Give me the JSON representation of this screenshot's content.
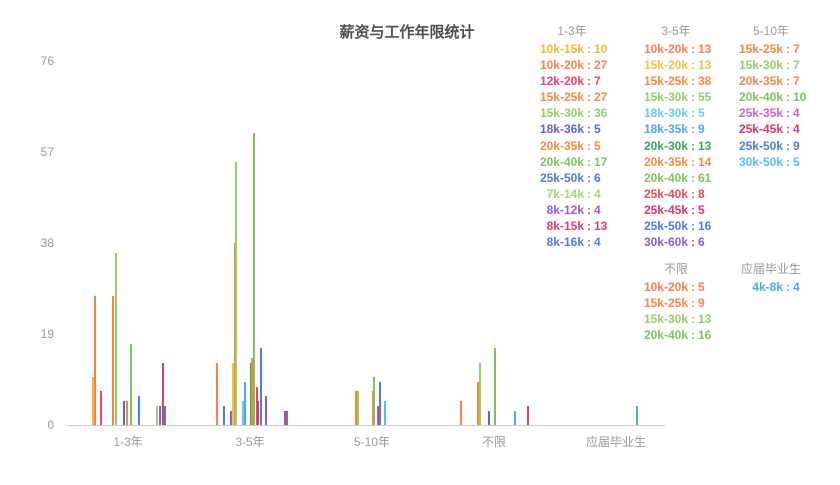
{
  "title": "薪资与工作年限统计",
  "chart_data": {
    "type": "bar",
    "title": "薪资与工作年限统计",
    "xlabel": "",
    "ylabel": "",
    "y_ticks": [
      0,
      19,
      38,
      57,
      76
    ],
    "ylim": [
      0,
      76
    ],
    "grid": false,
    "legend_position": "right",
    "categories": [
      "1-3年",
      "3-5年",
      "5-10年",
      "不限",
      "应届毕业生"
    ],
    "range_colors": {
      "10k-15k": "#F8B62D",
      "10k-20k": "#F97D51",
      "12k-20k": "#EE3F6F",
      "15k-20k": "#F4C23C",
      "15k-25k": "#F6883D",
      "15k-30k": "#93CE67",
      "18k-30k": "#66CEE4",
      "18k-35k": "#4BA5EF",
      "18k-36k": "#5A64D2",
      "20k-30k": "#34A863",
      "20k-35k": "#F6873C",
      "20k-40k": "#7CC35B",
      "25k-35k": "#C95FD8",
      "25k-40k": "#EF4752",
      "25k-45k": "#DC3568",
      "25k-50k": "#4D7BE0",
      "30k-50k": "#53BEF0",
      "30k-60k": "#8B5BD6",
      "4k-8k": "#45AAF0",
      "7k-14k": "#A5D46A",
      "8k-12k": "#8E5BD9",
      "8k-15k": "#DD3C6F",
      "8k-16k": "#4D7BE0"
    },
    "groups": [
      {
        "name": "1-3年",
        "legend_col": 0,
        "legend_row": 0,
        "entries": [
          {
            "range": "10k-15k",
            "value": 10,
            "offset": -35
          },
          {
            "range": "10k-20k",
            "value": 27,
            "offset": -33
          },
          {
            "range": "12k-20k",
            "value": 7,
            "offset": -27.5
          },
          {
            "range": "15k-25k",
            "value": 27,
            "offset": -15
          },
          {
            "range": "15k-30k",
            "value": 36,
            "offset": -12.5
          },
          {
            "range": "18k-36k",
            "value": 5,
            "offset": -4
          },
          {
            "range": "20k-35k",
            "value": 5,
            "offset": -1.5
          },
          {
            "range": "20k-40k",
            "value": 17,
            "offset": 2.5
          },
          {
            "range": "25k-50k",
            "value": 6,
            "offset": 10.5
          },
          {
            "range": "7k-14k",
            "value": 4,
            "offset": 29
          },
          {
            "range": "8k-12k",
            "value": 4,
            "offset": 32
          },
          {
            "range": "8k-15k",
            "value": 13,
            "offset": 34.5
          },
          {
            "range": "8k-16k",
            "value": 4,
            "offset": 37
          }
        ],
        "extra_bars": []
      },
      {
        "name": "3-5年",
        "legend_col": 1,
        "legend_row": 0,
        "entries": [
          {
            "range": "10k-20k",
            "value": 13,
            "offset": -33.5
          },
          {
            "range": "15k-20k",
            "value": 13,
            "offset": -17
          },
          {
            "range": "15k-25k",
            "value": 38,
            "offset": -15.5
          },
          {
            "range": "15k-30k",
            "value": 55,
            "offset": -14
          },
          {
            "range": "18k-30k",
            "value": 5,
            "offset": -7.5
          },
          {
            "range": "18k-35k",
            "value": 9,
            "offset": -5.5
          },
          {
            "range": "20k-30k",
            "value": 13,
            "offset": 0.5
          },
          {
            "range": "20k-35k",
            "value": 14,
            "offset": 2
          },
          {
            "range": "20k-40k",
            "value": 61,
            "offset": 4.3
          },
          {
            "range": "25k-40k",
            "value": 8,
            "offset": 6.5
          },
          {
            "range": "25k-45k",
            "value": 5,
            "offset": 8.3
          },
          {
            "range": "25k-50k",
            "value": 16,
            "offset": 10.6
          },
          {
            "range": "30k-60k",
            "value": 6,
            "offset": 16.3
          }
        ],
        "extra_bars": [
          {
            "value": 4,
            "offset": -26.5,
            "color": "#4D7BE0"
          },
          {
            "value": 3,
            "offset": -19.5,
            "color": "#8E5BD9"
          },
          {
            "value": 3,
            "offset": 34.5,
            "color": "#DD3C6F"
          },
          {
            "value": 3,
            "offset": 36.5,
            "color": "#4D7BE0"
          }
        ]
      },
      {
        "name": "5-10年",
        "legend_col": 2,
        "legend_row": 0,
        "entries": [
          {
            "range": "15k-25k",
            "value": 7,
            "offset": -16
          },
          {
            "range": "15k-30k",
            "value": 7,
            "offset": -14.5
          },
          {
            "range": "20k-35k",
            "value": 7,
            "offset": 0.5
          },
          {
            "range": "20k-40k",
            "value": 10,
            "offset": 2
          },
          {
            "range": "25k-35k",
            "value": 4,
            "offset": 5.5
          },
          {
            "range": "25k-45k",
            "value": 4,
            "offset": 6.8
          },
          {
            "range": "25k-50k",
            "value": 9,
            "offset": 8
          },
          {
            "range": "30k-50k",
            "value": 5,
            "offset": 12.5
          }
        ],
        "extra_bars": []
      },
      {
        "name": "不限",
        "legend_col": 1,
        "legend_row": 1,
        "entries": [
          {
            "range": "10k-20k",
            "value": 5,
            "offset": -33.5
          },
          {
            "range": "15k-25k",
            "value": 9,
            "offset": -16
          },
          {
            "range": "15k-30k",
            "value": 13,
            "offset": -14.5
          },
          {
            "range": "20k-40k",
            "value": 16,
            "offset": 1.3
          }
        ],
        "extra_bars": [
          {
            "value": 3,
            "offset": -5.5,
            "color": "#5A64D2"
          },
          {
            "value": 3,
            "offset": 21.3,
            "color": "#45AAF0"
          },
          {
            "value": 4,
            "offset": 33.5,
            "color": "#DD3C6F"
          }
        ]
      },
      {
        "name": "应届毕业生",
        "legend_col": 2,
        "legend_row": 1,
        "entries": [
          {
            "range": "4k-8k",
            "value": 4,
            "offset": 21
          }
        ],
        "extra_bars": []
      }
    ],
    "legend_separator": ":"
  }
}
